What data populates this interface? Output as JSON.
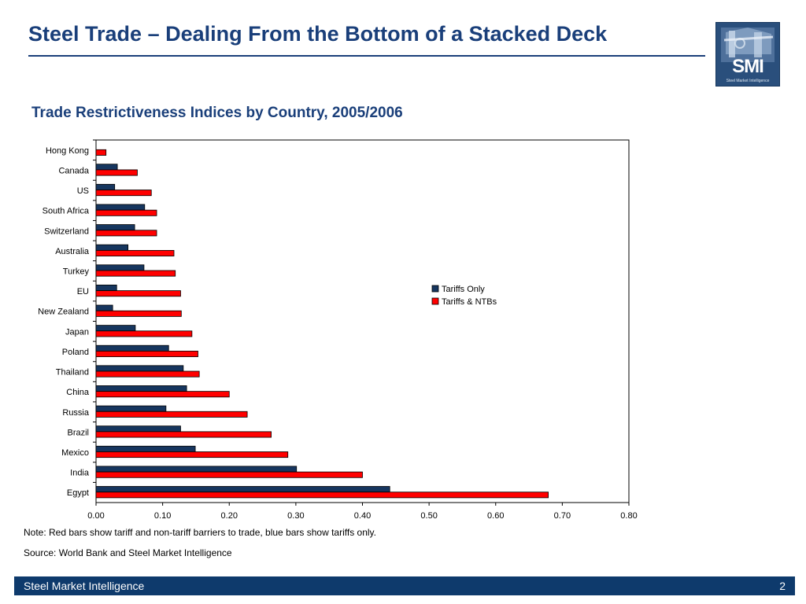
{
  "slide": {
    "title": "Steel Trade – Dealing From the Bottom of a Stacked Deck",
    "note": "Note: Red bars show tariff and non-tariff barriers to trade, blue bars show tariffs only.",
    "source": "Source: World Bank and Steel Market Intelligence"
  },
  "logo": {
    "text": "SMI",
    "subtitle": "Steel Market Intelligence",
    "color": "#2a4f7c"
  },
  "footer": {
    "left": "Steel Market Intelligence",
    "page_number": "2",
    "color": "#0e3a6c"
  },
  "colors": {
    "title": "#1a3f7a",
    "tariffs_only": "#16365f",
    "tariffs_ntbs": "#ff0000"
  },
  "chart_data": {
    "type": "bar",
    "orientation": "horizontal",
    "title": "Trade Restrictiveness Indices by Country, 2005/2006",
    "xlabel": "",
    "ylabel": "",
    "xlim": [
      0,
      0.8
    ],
    "xticks": [
      "0.00",
      "0.10",
      "0.20",
      "0.30",
      "0.40",
      "0.50",
      "0.60",
      "0.70",
      "0.80"
    ],
    "grid": false,
    "legend_position": "right",
    "categories": [
      "Hong Kong",
      "Canada",
      "US",
      "South Africa",
      "Switzerland",
      "Australia",
      "Turkey",
      "EU",
      "New Zealand",
      "Japan",
      "Poland",
      "Thailand",
      "China",
      "Russia",
      "Brazil",
      "Mexico",
      "India",
      "Egypt"
    ],
    "series": [
      {
        "name": "Tariffs Only",
        "color": "#16365f",
        "values": [
          0.0,
          0.032,
          0.028,
          0.073,
          0.058,
          0.048,
          0.072,
          0.031,
          0.025,
          0.059,
          0.109,
          0.131,
          0.136,
          0.105,
          0.127,
          0.149,
          0.301,
          0.441
        ]
      },
      {
        "name": "Tariffs & NTBs",
        "color": "#ff0000",
        "values": [
          0.015,
          0.062,
          0.083,
          0.091,
          0.091,
          0.117,
          0.119,
          0.127,
          0.128,
          0.144,
          0.153,
          0.155,
          0.2,
          0.227,
          0.263,
          0.288,
          0.4,
          0.679
        ]
      }
    ]
  }
}
